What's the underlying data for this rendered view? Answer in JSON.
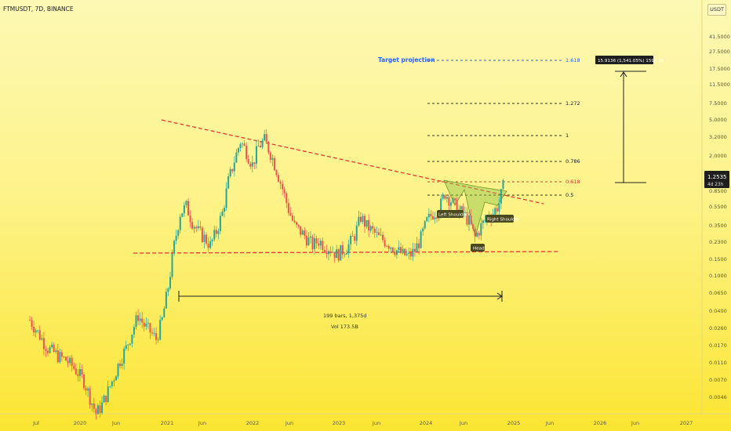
{
  "header": {
    "title": "FTMUSDT, 7D, BINANCE",
    "currency": "USDT"
  },
  "colors": {
    "up": "#26a69a",
    "down": "#ef5350",
    "dashed": "#e53935",
    "target": "#2962ff",
    "tag": "#4a4a1e"
  },
  "chart_data": {
    "type": "candlestick",
    "title": "FTMUSDT, 7D, BINANCE",
    "y_scale": "log",
    "y_ticks": [
      "41.5000",
      "27.5000",
      "17.5000",
      "11.5000",
      "7.5000",
      "5.0000",
      "3.2000",
      "2.0000",
      "1.2535",
      "0.8500",
      "0.5500",
      "0.3500",
      "0.2300",
      "0.1500",
      "0.1000",
      "0.0650",
      "0.0400",
      "0.0260",
      "0.0170",
      "0.0110",
      "0.0070",
      "0.0046"
    ],
    "price_tag": {
      "value": "1.2535",
      "sub": "4d 23h"
    },
    "x_ticks": [
      "Jul",
      "2020",
      "Jun",
      "2021",
      "Jun",
      "2022",
      "Jun",
      "2023",
      "Jun",
      "2024",
      "Jun",
      "2025",
      "Jun",
      "2026",
      "Jun",
      "2027"
    ],
    "series": [
      {
        "y": [
          0.04,
          0.032,
          0.025,
          0.02,
          0.018,
          0.016,
          0.015,
          0.013,
          0.011,
          0.009,
          0.006,
          0.004,
          0.005,
          0.007,
          0.01,
          0.015,
          0.02,
          0.03,
          0.045,
          0.035,
          0.03,
          0.025,
          0.04,
          0.09,
          0.25,
          0.55,
          0.65,
          0.45,
          0.35,
          0.3,
          0.25,
          0.35,
          0.55,
          1.2,
          2.0,
          3.2,
          2.5,
          1.8,
          2.8,
          3.3,
          2.4,
          1.6,
          1.0,
          0.6,
          0.4,
          0.35,
          0.3,
          0.25,
          0.28,
          0.25,
          0.23,
          0.2,
          0.22,
          0.25,
          0.32,
          0.5,
          0.4,
          0.35,
          0.3,
          0.28,
          0.25,
          0.22,
          0.2,
          0.19,
          0.22,
          0.3,
          0.45,
          0.55,
          0.6,
          0.9,
          0.75,
          0.6,
          0.55,
          0.45,
          0.3,
          0.4,
          0.5,
          0.55,
          0.7,
          1.3
        ]
      }
    ],
    "fib_levels": [
      {
        "label": "1.618"
      },
      {
        "label": "1.272"
      },
      {
        "label": "1"
      },
      {
        "label": "0.786"
      },
      {
        "label": "0.618"
      },
      {
        "label": "0.5"
      }
    ],
    "annotations": {
      "target_projection": "Target projection",
      "target_box": "15.9136 (1,541.05%) 159,136",
      "measure_main": "199 bars, 1,375d",
      "measure_sub": "Vol 173.5B",
      "left_shoulder": "Left Shoulder",
      "head": "Head",
      "right_shoulder": "Right Shoulder"
    }
  }
}
